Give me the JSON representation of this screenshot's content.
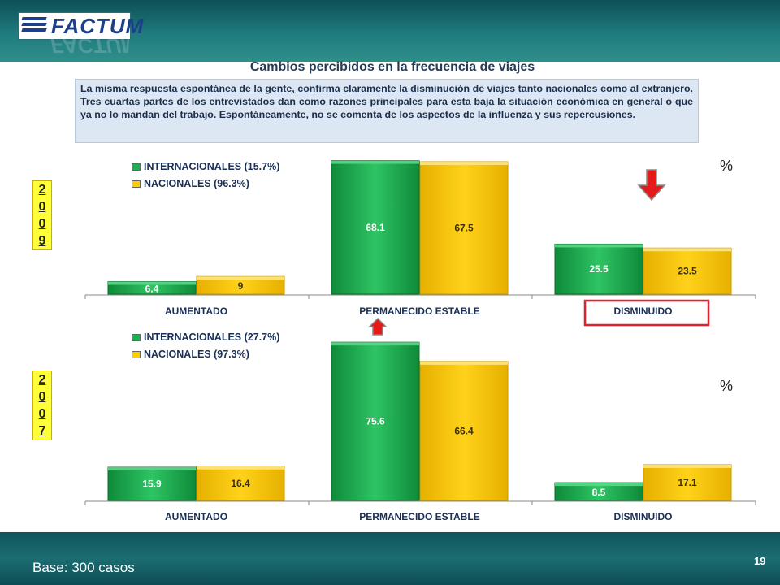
{
  "logo": {
    "text": "FACTUM"
  },
  "title": "Cambios percibidos en la frecuencia de viajes",
  "note": {
    "underlined": "La misma respuesta espontánea de la gente, confirma claramente la disminución de viajes tanto nacionales como al extranjero",
    "rest": ". Tres cuartas partes de los entrevistados dan como razones principales para esta baja la situación económica en general o que ya no lo mandan del trabajo. Espontáneamente, no se comenta de los aspectos de la influenza y sus repercusiones."
  },
  "footer": {
    "base": "Base: 300 casos",
    "page_number": "19"
  },
  "colors": {
    "green": "#1fae52",
    "yellow": "#ffcc00",
    "highlight": "#e0202a",
    "arrow_red": "#e51b1b"
  },
  "chart_data": [
    {
      "type": "bar",
      "year_label": [
        "2",
        "0",
        "0",
        "9"
      ],
      "unit": "%",
      "categories": [
        "AUMENTADO",
        "PERMANECIDO ESTABLE",
        "DISMINUIDO"
      ],
      "series": [
        {
          "name": "INTERNACIONALES (15.7%)",
          "values": [
            6.4,
            68.1,
            25.5
          ],
          "labels": [
            "6.4",
            "68.1",
            "25.5"
          ]
        },
        {
          "name": "NACIONALES (96.3%)",
          "values": [
            9,
            67.5,
            23.5
          ],
          "labels": [
            "9",
            "67.5",
            "23.5"
          ]
        }
      ],
      "ylim": [
        0,
        70
      ],
      "grid": false,
      "legend_position": "top-left",
      "highlighted_category": "DISMINUIDO",
      "trend_arrow": "down"
    },
    {
      "type": "bar",
      "year_label": [
        "2",
        "0",
        "0",
        "7"
      ],
      "unit": "%",
      "categories": [
        "AUMENTADO",
        "PERMANECIDO ESTABLE",
        "DISMINUIDO"
      ],
      "series": [
        {
          "name": "INTERNACIONALES (27.7%)",
          "values": [
            15.9,
            75.6,
            8.5
          ],
          "labels": [
            "15.9",
            "75.6",
            "8.5"
          ]
        },
        {
          "name": "NACIONALES (97.3%)",
          "values": [
            16.4,
            66.4,
            17.1
          ],
          "labels": [
            "16.4",
            "66.4",
            "17.1"
          ]
        }
      ],
      "ylim": [
        0,
        78
      ],
      "grid": false,
      "legend_position": "top-left",
      "trend_arrow": "up"
    }
  ]
}
